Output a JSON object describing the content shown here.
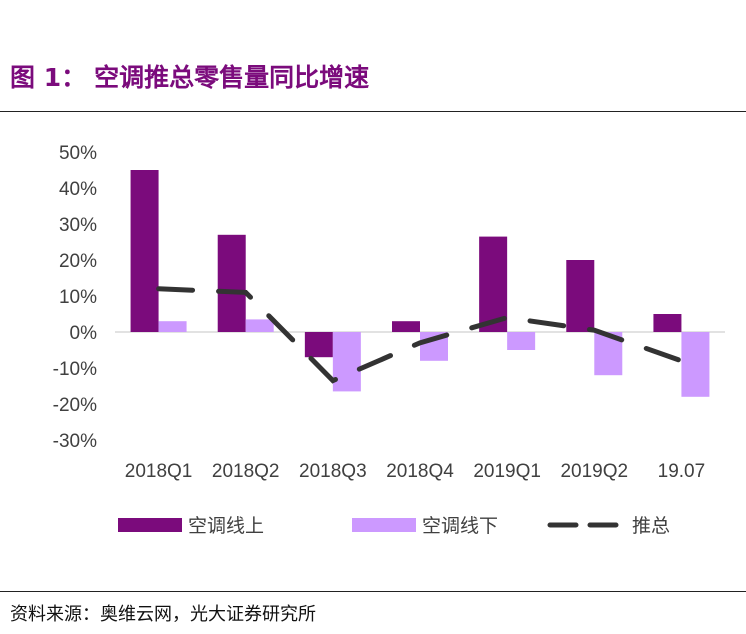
{
  "figure": {
    "number": "图 1：",
    "title": "空调推总零售量同比增速",
    "source": "资料来源：奥维云网，光大证券研究所"
  },
  "chart_data": {
    "type": "bar",
    "categories": [
      "2018Q1",
      "2018Q2",
      "2018Q3",
      "2018Q4",
      "2019Q1",
      "2019Q2",
      "19.07"
    ],
    "series": [
      {
        "name": "空调线上",
        "kind": "bar",
        "color": "#7B0B7C",
        "values": [
          45,
          27,
          -7,
          3,
          26.5,
          20,
          5
        ]
      },
      {
        "name": "空调线下",
        "kind": "bar",
        "color": "#CC99FF",
        "values": [
          3,
          3.5,
          -16.5,
          -8,
          -5,
          -12,
          -18
        ]
      },
      {
        "name": "推总",
        "kind": "line",
        "style": "dashed",
        "color": "#333333",
        "values": [
          12,
          11,
          -13.5,
          -3,
          4,
          0.5,
          -8
        ]
      }
    ],
    "y_ticks": [
      "50%",
      "40%",
      "30%",
      "20%",
      "10%",
      "0%",
      "-10%",
      "-20%",
      "-30%"
    ],
    "ylim": [
      -30,
      50
    ],
    "y_unit": "%",
    "legend_position": "bottom"
  }
}
